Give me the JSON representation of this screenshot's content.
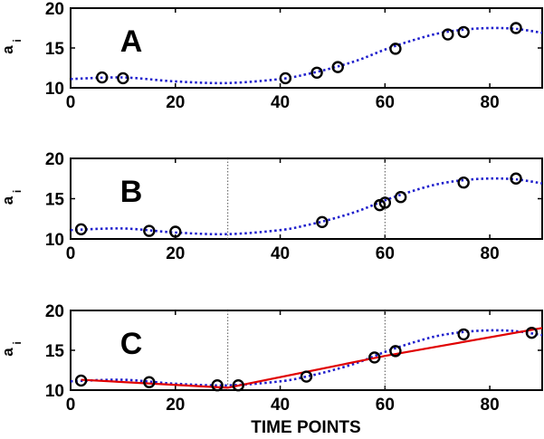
{
  "chart_data": [
    {
      "type": "scatter",
      "panel_label": "A",
      "ylabel": "a",
      "ylabel_subscript": "i",
      "xlim": [
        0,
        90
      ],
      "ylim": [
        10,
        20
      ],
      "x_ticks": [
        0,
        20,
        40,
        60,
        80
      ],
      "y_ticks": [
        10,
        15,
        20
      ],
      "grid": false,
      "dotted_curve": {
        "color": "#1f1fcc",
        "x": [
          0,
          10,
          20,
          30,
          40,
          45,
          50,
          55,
          60,
          65,
          70,
          75,
          80,
          85,
          90
        ],
        "y": [
          11.1,
          11.3,
          10.8,
          10.6,
          11.1,
          11.7,
          12.5,
          13.5,
          14.8,
          15.9,
          16.8,
          17.3,
          17.5,
          17.4,
          16.9
        ]
      },
      "points": {
        "x": [
          6,
          10,
          41,
          47,
          51,
          62,
          72,
          75,
          85
        ],
        "y": [
          11.3,
          11.2,
          11.2,
          11.9,
          12.6,
          14.9,
          16.7,
          17.0,
          17.5
        ]
      },
      "vlines": []
    },
    {
      "type": "scatter",
      "panel_label": "B",
      "ylabel": "a",
      "ylabel_subscript": "i",
      "xlim": [
        0,
        90
      ],
      "ylim": [
        10,
        20
      ],
      "x_ticks": [
        0,
        20,
        40,
        60,
        80
      ],
      "y_ticks": [
        10,
        15,
        20
      ],
      "grid": false,
      "dotted_curve": {
        "color": "#1f1fcc",
        "x": [
          0,
          10,
          20,
          30,
          40,
          45,
          50,
          55,
          60,
          65,
          70,
          75,
          80,
          85,
          90
        ],
        "y": [
          11.1,
          11.3,
          10.8,
          10.6,
          11.1,
          11.7,
          12.5,
          13.5,
          14.8,
          15.9,
          16.8,
          17.3,
          17.5,
          17.4,
          16.9
        ]
      },
      "points": {
        "x": [
          2,
          15,
          20,
          48,
          59,
          60,
          63,
          75,
          85
        ],
        "y": [
          11.2,
          11.0,
          10.9,
          12.1,
          14.2,
          14.5,
          15.2,
          17.0,
          17.5
        ]
      },
      "vlines": [
        30,
        60
      ]
    },
    {
      "type": "scatter",
      "panel_label": "C",
      "ylabel": "a",
      "ylabel_subscript": "i",
      "xlabel": "TIME POINTS",
      "xlim": [
        0,
        90
      ],
      "ylim": [
        10,
        20
      ],
      "x_ticks": [
        0,
        20,
        40,
        60,
        80
      ],
      "y_ticks": [
        10,
        15,
        20
      ],
      "grid": false,
      "dotted_curve": {
        "color": "#1f1fcc",
        "x": [
          0,
          10,
          20,
          30,
          40,
          45,
          50,
          55,
          60,
          65,
          70,
          75,
          80,
          85,
          90
        ],
        "y": [
          11.1,
          11.3,
          10.8,
          10.6,
          11.1,
          11.7,
          12.5,
          13.5,
          14.8,
          15.9,
          16.8,
          17.3,
          17.5,
          17.4,
          16.9
        ]
      },
      "fit_line": {
        "color": "#e00000",
        "x": [
          2,
          30,
          60,
          90
        ],
        "y": [
          11.3,
          10.3,
          14.3,
          17.8
        ]
      },
      "points": {
        "x": [
          2,
          15,
          28,
          32,
          45,
          58,
          62,
          75,
          88
        ],
        "y": [
          11.2,
          11.0,
          10.6,
          10.6,
          11.7,
          14.1,
          14.9,
          17.0,
          17.2
        ]
      },
      "vlines": [
        30,
        60
      ]
    }
  ]
}
